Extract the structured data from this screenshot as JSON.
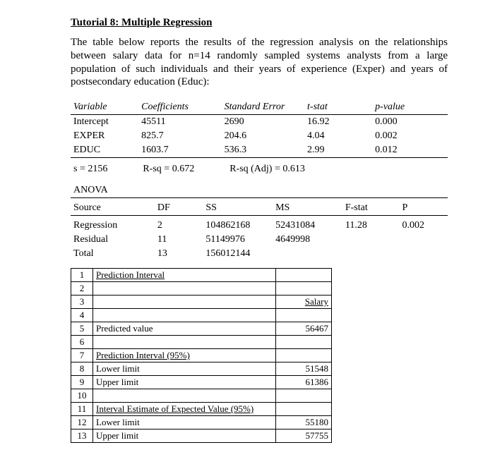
{
  "title": "Tutorial 8: Multiple Regression",
  "intro": "The table below reports the results of the regression analysis on the relationships between salary data for n=14 randomly sampled systems analysts from a large population of such individuals and their years of experience (Exper) and years of postsecondary education (Educ):",
  "reg": {
    "headers": {
      "var": "Variable",
      "coef": "Coefficients",
      "se": "Standard Error",
      "t": "t-stat",
      "p": "p-value"
    },
    "rows": [
      {
        "var": "Intercept",
        "coef": "45511",
        "se": "2690",
        "t": "16.92",
        "p": "0.000"
      },
      {
        "var": "EXPER",
        "coef": "825.7",
        "se": "204.6",
        "t": "4.04",
        "p": "0.002"
      },
      {
        "var": "EDUC",
        "coef": "1603.7",
        "se": "536.3",
        "t": "2.99",
        "p": "0.012"
      }
    ]
  },
  "stats": {
    "s": "s = 2156",
    "rsq": "R-sq = 0.672",
    "rsqa": "R-sq (Adj) = 0.613"
  },
  "anova": {
    "label": "ANOVA",
    "headers": {
      "src": "Source",
      "df": "DF",
      "ss": "SS",
      "ms": "MS",
      "f": "F-stat",
      "p": "P"
    },
    "rows": [
      {
        "src": "Regression",
        "df": "2",
        "ss": "104862168",
        "ms": "52431084",
        "f": "11.28",
        "p": "0.002"
      },
      {
        "src": "Residual",
        "df": "11",
        "ss": "51149976",
        "ms": "4649998",
        "f": "",
        "p": ""
      },
      {
        "src": "Total",
        "df": "13",
        "ss": "156012144",
        "ms": "",
        "f": "",
        "p": ""
      }
    ]
  },
  "pred": {
    "rows": [
      {
        "n": "1",
        "label": "Prediction Interval",
        "val": "",
        "u": true
      },
      {
        "n": "2",
        "label": "",
        "val": ""
      },
      {
        "n": "3",
        "label": "",
        "val": "Salary",
        "u": true
      },
      {
        "n": "4",
        "label": "",
        "val": ""
      },
      {
        "n": "5",
        "label": "Predicted value",
        "val": "56467"
      },
      {
        "n": "6",
        "label": "",
        "val": ""
      },
      {
        "n": "7",
        "label": "Prediction Interval (95%)",
        "val": "",
        "u": true
      },
      {
        "n": "8",
        "label": "Lower limit",
        "val": "51548"
      },
      {
        "n": "9",
        "label": "Upper limit",
        "val": "61386"
      },
      {
        "n": "10",
        "label": "",
        "val": ""
      },
      {
        "n": "11",
        "label": "Interval Estimate of Expected Value (95%)",
        "val": "",
        "u": true
      },
      {
        "n": "12",
        "label": "Lower limit",
        "val": "55180"
      },
      {
        "n": "13",
        "label": "Upper limit",
        "val": "57755"
      }
    ]
  }
}
